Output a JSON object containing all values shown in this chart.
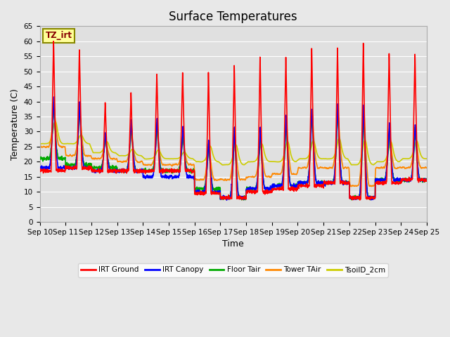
{
  "title": "Surface Temperatures",
  "xlabel": "Time",
  "ylabel": "Temperature (C)",
  "ylim": [
    0,
    65
  ],
  "yticks": [
    0,
    5,
    10,
    15,
    20,
    25,
    30,
    35,
    40,
    45,
    50,
    55,
    60,
    65
  ],
  "x_tick_labels": [
    "Sep 10",
    "Sep 11",
    "Sep 12",
    "Sep 13",
    "Sep 14",
    "Sep 15",
    "Sep 16",
    "Sep 17",
    "Sep 18",
    "Sep 19",
    "Sep 20",
    "Sep 21",
    "Sep 22",
    "Sep 23",
    "Sep 24",
    "Sep 25"
  ],
  "legend_entries": [
    "IRT Ground",
    "IRT Canopy",
    "Floor Tair",
    "Tower TAir",
    "TsoilD_2cm"
  ],
  "line_colors": [
    "#ff0000",
    "#0000ff",
    "#00aa00",
    "#ff8800",
    "#cccc00"
  ],
  "annotation_text": "TZ_irt",
  "annotation_color": "#880000",
  "annotation_bg": "#ffff99",
  "annotation_border": "#888800",
  "fig_bg_color": "#e8e8e8",
  "plot_bg_color": "#e0e0e0",
  "grid_color": "#ffffff",
  "title_fontsize": 12,
  "axis_label_fontsize": 9,
  "tick_fontsize": 7.5
}
